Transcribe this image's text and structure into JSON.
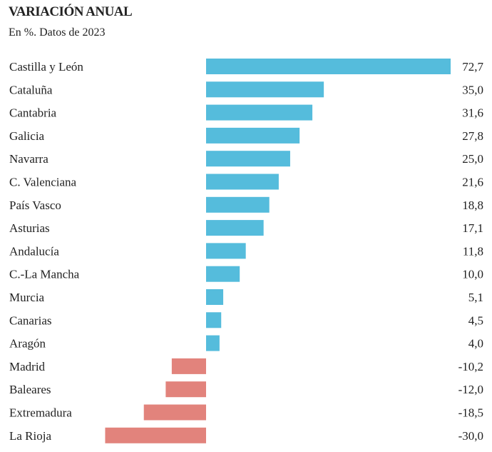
{
  "chart_data": {
    "type": "bar",
    "orientation": "horizontal",
    "title": "VARIACIÓN ANUAL",
    "subtitle": "En %. Datos de 2023",
    "categories": [
      "Castilla y León",
      "Cataluña",
      "Cantabria",
      "Galicia",
      "Navarra",
      "C. Valenciana",
      "País Vasco",
      "Asturias",
      "Andalucía",
      "C.-La Mancha",
      "Murcia",
      "Canarias",
      "Aragón",
      "Madrid",
      "Baleares",
      "Extremadura",
      "La Rioja"
    ],
    "values": [
      72.7,
      35.0,
      31.6,
      27.8,
      25.0,
      21.6,
      18.8,
      17.1,
      11.8,
      10.0,
      5.1,
      4.5,
      4.0,
      -10.2,
      -12.0,
      -18.5,
      -30.0
    ],
    "value_labels": [
      "72,7",
      "35,0",
      "31,6",
      "27,8",
      "25,0",
      "21,6",
      "18,8",
      "17,1",
      "11,8",
      "10,0",
      "5,1",
      "4,5",
      "4,0",
      "-10,2",
      "-12,0",
      "-18,5",
      "-30,0"
    ],
    "colors": {
      "positive": "#55bcdc",
      "negative": "#e2837c"
    },
    "xlim": [
      -30,
      72.7
    ],
    "grid": false,
    "legend": "none"
  }
}
